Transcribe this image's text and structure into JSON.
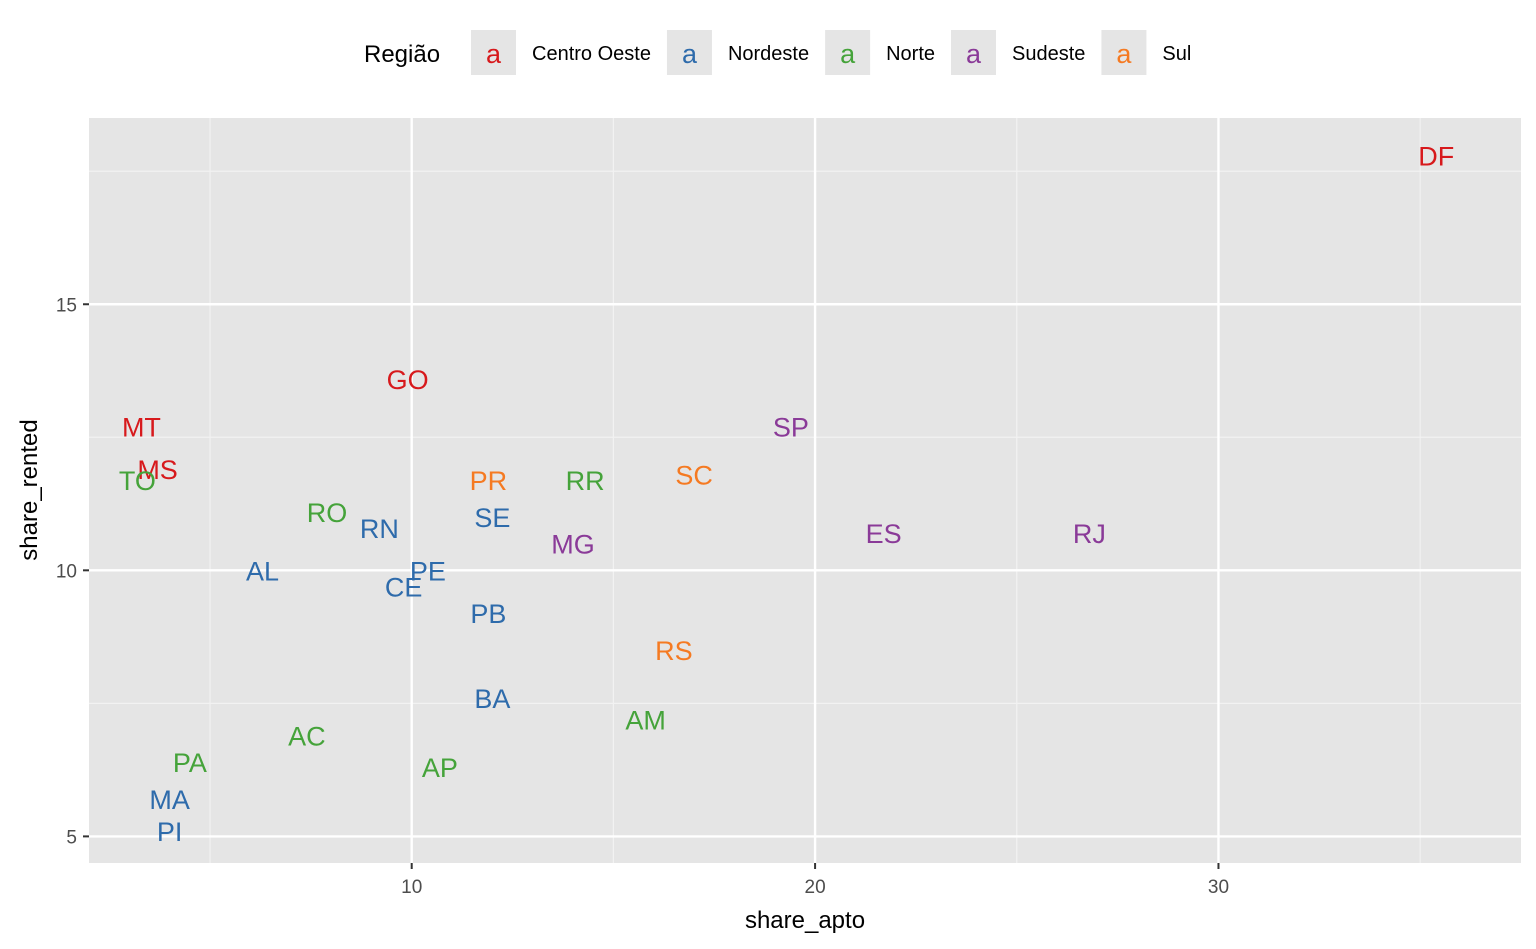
{
  "chart_data": {
    "type": "scatter",
    "xlabel": "share_apto",
    "ylabel": "share_rented",
    "xlim": [
      2,
      37.5
    ],
    "ylim": [
      4.5,
      18.5
    ],
    "x_ticks": [
      10,
      20,
      30
    ],
    "x_minor_ticks": [
      5,
      15,
      25,
      35
    ],
    "y_ticks": [
      5,
      10,
      15
    ],
    "y_minor_ticks": [
      7.5,
      12.5,
      17.5
    ],
    "grid": true,
    "legend": {
      "title": "Região",
      "position": "top",
      "key_glyph": "a",
      "entries": [
        {
          "name": "Centro Oeste",
          "color": "#d7191c"
        },
        {
          "name": "Nordeste",
          "color": "#2e6bab"
        },
        {
          "name": "Norte",
          "color": "#45a33a"
        },
        {
          "name": "Sudeste",
          "color": "#8a3a98"
        },
        {
          "name": "Sul",
          "color": "#f57a22"
        }
      ]
    },
    "points": [
      {
        "label": "DF",
        "x": 35.4,
        "y": 17.8,
        "group": "Centro Oeste"
      },
      {
        "label": "GO",
        "x": 9.9,
        "y": 13.6,
        "group": "Centro Oeste"
      },
      {
        "label": "MT",
        "x": 3.3,
        "y": 12.7,
        "group": "Centro Oeste"
      },
      {
        "label": "MS",
        "x": 3.7,
        "y": 11.9,
        "group": "Centro Oeste"
      },
      {
        "label": "TO",
        "x": 3.2,
        "y": 11.7,
        "group": "Norte"
      },
      {
        "label": "RO",
        "x": 7.9,
        "y": 11.1,
        "group": "Norte"
      },
      {
        "label": "RN",
        "x": 9.2,
        "y": 10.8,
        "group": "Nordeste"
      },
      {
        "label": "SE",
        "x": 12.0,
        "y": 11.0,
        "group": "Nordeste"
      },
      {
        "label": "PR",
        "x": 11.9,
        "y": 11.7,
        "group": "Sul"
      },
      {
        "label": "RR",
        "x": 14.3,
        "y": 11.7,
        "group": "Norte"
      },
      {
        "label": "SC",
        "x": 17.0,
        "y": 11.8,
        "group": "Sul"
      },
      {
        "label": "SP",
        "x": 19.4,
        "y": 12.7,
        "group": "Sudeste"
      },
      {
        "label": "ES",
        "x": 21.7,
        "y": 10.7,
        "group": "Sudeste"
      },
      {
        "label": "RJ",
        "x": 26.8,
        "y": 10.7,
        "group": "Sudeste"
      },
      {
        "label": "MG",
        "x": 14.0,
        "y": 10.5,
        "group": "Sudeste"
      },
      {
        "label": "AL",
        "x": 6.3,
        "y": 10.0,
        "group": "Nordeste"
      },
      {
        "label": "PE",
        "x": 10.4,
        "y": 10.0,
        "group": "Nordeste"
      },
      {
        "label": "CE",
        "x": 9.8,
        "y": 9.7,
        "group": "Nordeste"
      },
      {
        "label": "PB",
        "x": 11.9,
        "y": 9.2,
        "group": "Nordeste"
      },
      {
        "label": "RS",
        "x": 16.5,
        "y": 8.5,
        "group": "Sul"
      },
      {
        "label": "BA",
        "x": 12.0,
        "y": 7.6,
        "group": "Nordeste"
      },
      {
        "label": "AM",
        "x": 15.8,
        "y": 7.2,
        "group": "Norte"
      },
      {
        "label": "AC",
        "x": 7.4,
        "y": 6.9,
        "group": "Norte"
      },
      {
        "label": "AP",
        "x": 10.7,
        "y": 6.3,
        "group": "Norte"
      },
      {
        "label": "PA",
        "x": 4.5,
        "y": 6.4,
        "group": "Norte"
      },
      {
        "label": "MA",
        "x": 4.0,
        "y": 5.7,
        "group": "Nordeste"
      },
      {
        "label": "PI",
        "x": 4.0,
        "y": 5.1,
        "group": "Nordeste"
      }
    ]
  }
}
